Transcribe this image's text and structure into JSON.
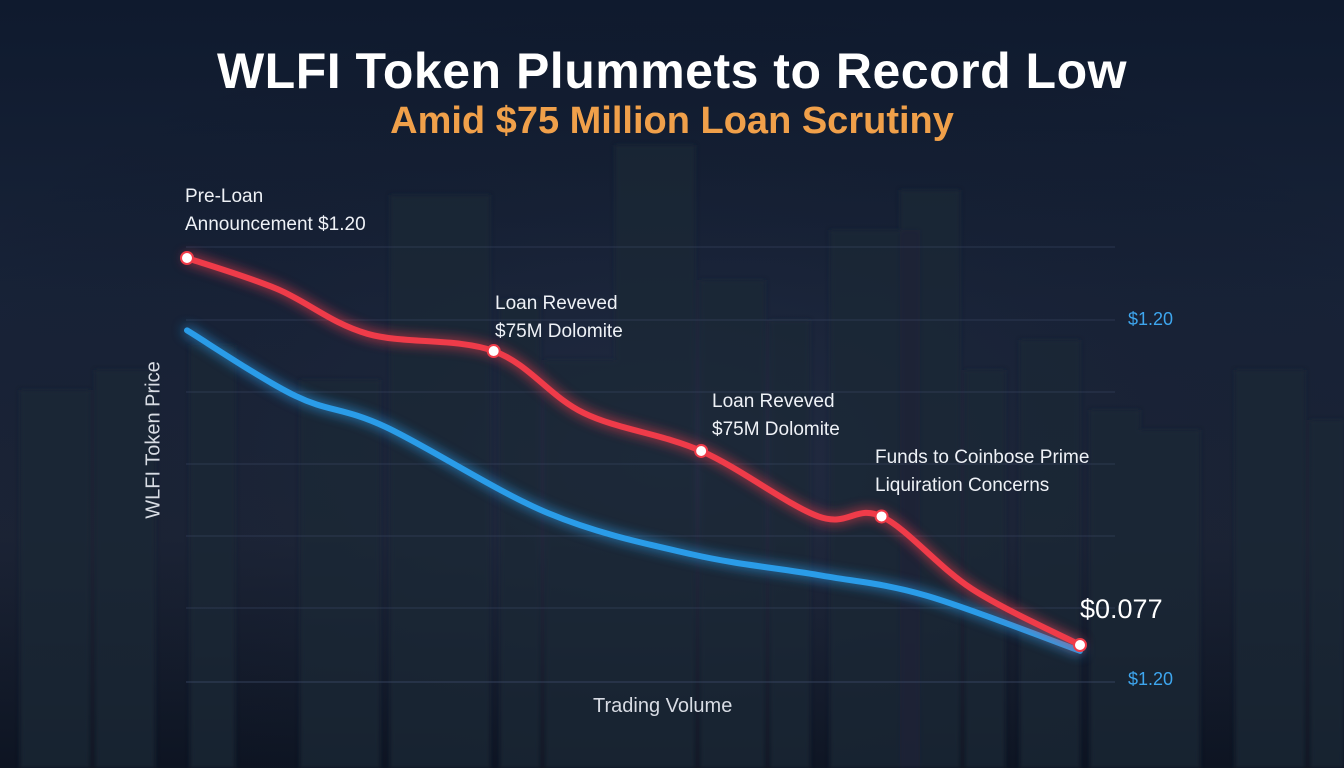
{
  "chart_data": {
    "type": "line",
    "title": "WLFI Token Plummets to Record Low",
    "subtitle": "Amid $75 Million Loan Scrutiny",
    "xlabel": "Trading Volume",
    "ylabel": "WLFI Token Price",
    "right_axis_ticks": [
      "$1.20",
      "$1.20"
    ],
    "grid": true,
    "series": [
      {
        "color": "#ef3b48",
        "points": [
          [
            0,
            1.2
          ],
          [
            10,
            1.11
          ],
          [
            20,
            0.98
          ],
          [
            34,
            0.93
          ],
          [
            44,
            0.75
          ],
          [
            57,
            0.64
          ],
          [
            70,
            0.45
          ],
          [
            77,
            0.45
          ],
          [
            87,
            0.24
          ],
          [
            99,
            0.077
          ]
        ]
      },
      {
        "color": "#2a9ce8",
        "points": [
          [
            0,
            0.99
          ],
          [
            12,
            0.8
          ],
          [
            22,
            0.71
          ],
          [
            40,
            0.46
          ],
          [
            56,
            0.34
          ],
          [
            70,
            0.28
          ],
          [
            82,
            0.22
          ],
          [
            99,
            0.06
          ]
        ]
      }
    ],
    "annotations": [
      {
        "x": 0,
        "y": 1.2,
        "lines": [
          "Pre-Loan",
          "Announcement $1.20"
        ]
      },
      {
        "x": 34,
        "y": 0.93,
        "lines": [
          "Loan Reveved",
          "$75M Dolomite"
        ]
      },
      {
        "x": 57,
        "y": 0.64,
        "lines": [
          "Loan Reveved",
          "$75M Dolomite"
        ]
      },
      {
        "x": 77,
        "y": 0.45,
        "lines": [
          "Funds to Coinbose Prime",
          "Liquiration Concerns"
        ]
      }
    ],
    "end_value": "$0.077"
  },
  "colors": {
    "background": "#121c30",
    "title": "#ffffff",
    "subtitle": "#f0a04a",
    "red_series": "#ef3b48",
    "blue_series": "#2a9ce8",
    "right_axis": "#3ea6ee"
  }
}
